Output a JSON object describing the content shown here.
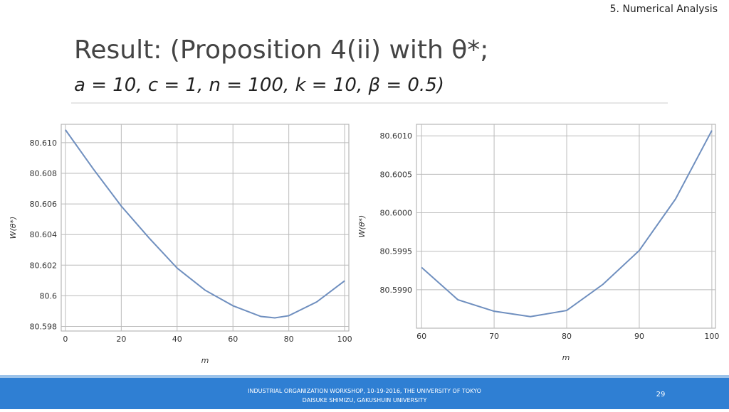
{
  "slide": {
    "section": "5. Numerical Analysis",
    "title": "Result: (Proposition 4(ii) with θ*;",
    "subtitle": "a = 10, c = 1, n = 100, k = 10, β = 0.5)",
    "footer": [
      "INDUSTRIAL ORGANIZATION WORKSHOP, 10-19-2016, THE UNIVERSITY OF TOKYO",
      "DAISUKE SHIMIZU, GAKUSHUIN UNIVERSITY"
    ],
    "page": 29
  },
  "chart_data": [
    {
      "type": "line",
      "xlabel": "m",
      "ylabel": "W(θ*)",
      "color": "#6f8fbf",
      "grid": true,
      "x": [
        0,
        10,
        20,
        30,
        40,
        50,
        60,
        70,
        75,
        80,
        90,
        100
      ],
      "values": [
        80.61084,
        80.60828,
        80.60586,
        80.60377,
        80.60181,
        80.60037,
        80.59935,
        80.59865,
        80.59856,
        80.5987,
        80.5996,
        80.60098
      ],
      "xlim": [
        -1.5,
        101.5
      ],
      "ylim": [
        80.5977,
        80.6112
      ],
      "xticks": [
        0,
        20,
        40,
        60,
        80,
        100
      ],
      "yticks": [
        {
          "value": 80.598,
          "label": "80.598"
        },
        80.6,
        80.602,
        80.604,
        80.606,
        80.608,
        {
          "value": 80.61,
          "label": "80.610"
        }
      ]
    },
    {
      "type": "line",
      "xlabel": "m",
      "ylabel": "W(θ*)",
      "color": "#6f8fbf",
      "grid": true,
      "x": [
        60,
        65,
        70,
        75,
        80,
        85,
        90,
        95,
        100
      ],
      "values": [
        80.59929,
        80.59887,
        80.59872,
        80.59865,
        80.59873,
        80.59907,
        80.59951,
        80.60018,
        80.60107
      ],
      "xlim": [
        59.3,
        100.5
      ],
      "ylim": [
        80.5985,
        80.60115
      ],
      "xticks": [
        60,
        70,
        80,
        90,
        100
      ],
      "yticks": [
        {
          "value": 80.599,
          "label": "80.5990"
        },
        80.5995,
        {
          "value": 80.6,
          "label": "80.6000"
        },
        80.6005,
        {
          "value": 80.601,
          "label": "80.6010"
        }
      ]
    }
  ]
}
